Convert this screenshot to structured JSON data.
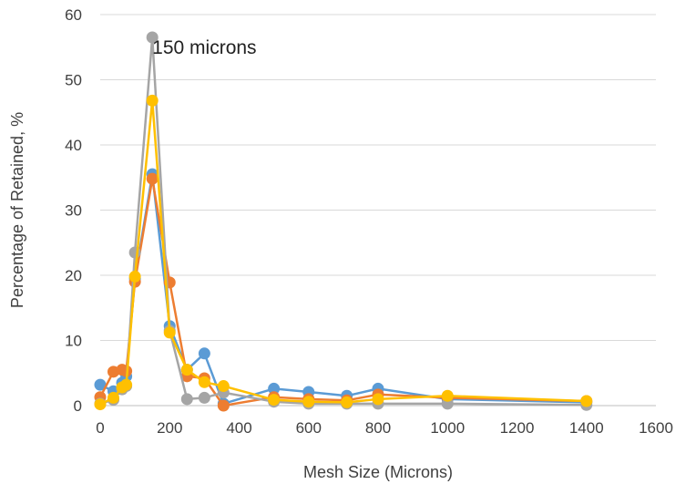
{
  "chart_data": {
    "type": "line",
    "title": "",
    "xlabel": "Mesh Size (Microns)",
    "ylabel": "Percentage of Retained, %",
    "xlim": [
      0,
      1600
    ],
    "ylim": [
      0,
      60
    ],
    "x_ticks": [
      0,
      200,
      400,
      600,
      800,
      1000,
      1200,
      1400,
      1600
    ],
    "y_ticks": [
      0,
      10,
      20,
      30,
      40,
      50,
      60
    ],
    "x_tick_labels": [
      "0",
      "200",
      "400",
      "600",
      "800",
      "1000",
      "1200",
      "1400",
      "1600"
    ],
    "y_tick_labels": [
      "0",
      "10",
      "20",
      "30",
      "40",
      "50",
      "60"
    ],
    "grid": "horizontal",
    "legend": "none",
    "annotations": [
      {
        "text": "150 microns",
        "x": 300,
        "y": 55
      }
    ],
    "series": [
      {
        "color": "#5b9bd5",
        "points": [
          [
            0,
            3.2
          ],
          [
            38,
            2.2
          ],
          [
            63,
            3.5
          ],
          [
            75,
            4.5
          ],
          [
            100,
            19.5
          ],
          [
            150,
            35.5
          ],
          [
            200,
            12.2
          ],
          [
            250,
            5.5
          ],
          [
            300,
            8.0
          ],
          [
            355,
            0.3
          ],
          [
            500,
            2.6
          ],
          [
            600,
            2.1
          ],
          [
            710,
            1.5
          ],
          [
            800,
            2.6
          ],
          [
            1000,
            1.0
          ],
          [
            1400,
            0.5
          ]
        ]
      },
      {
        "color": "#ed7d31",
        "points": [
          [
            0,
            1.3
          ],
          [
            38,
            5.2
          ],
          [
            63,
            5.5
          ],
          [
            75,
            5.3
          ],
          [
            100,
            19.0
          ],
          [
            150,
            34.8
          ],
          [
            200,
            18.9
          ],
          [
            250,
            4.5
          ],
          [
            300,
            4.2
          ],
          [
            355,
            0.0
          ],
          [
            500,
            1.3
          ],
          [
            600,
            1.0
          ],
          [
            710,
            0.8
          ],
          [
            800,
            1.7
          ],
          [
            1000,
            1.2
          ],
          [
            1400,
            0.7
          ]
        ]
      },
      {
        "color": "#a5a5a5",
        "points": [
          [
            0,
            0.3
          ],
          [
            38,
            0.9
          ],
          [
            63,
            2.5
          ],
          [
            75,
            3.0
          ],
          [
            100,
            23.5
          ],
          [
            150,
            56.5
          ],
          [
            200,
            11.5
          ],
          [
            250,
            1.0
          ],
          [
            300,
            1.2
          ],
          [
            355,
            2.0
          ],
          [
            500,
            0.6
          ],
          [
            600,
            0.3
          ],
          [
            710,
            0.3
          ],
          [
            800,
            0.3
          ],
          [
            1000,
            0.3
          ],
          [
            1400,
            0.1
          ]
        ]
      },
      {
        "color": "#ffc000",
        "points": [
          [
            0,
            0.2
          ],
          [
            38,
            1.2
          ],
          [
            63,
            2.8
          ],
          [
            75,
            3.2
          ],
          [
            100,
            19.8
          ],
          [
            150,
            46.8
          ],
          [
            200,
            11.2
          ],
          [
            250,
            5.5
          ],
          [
            300,
            3.6
          ],
          [
            355,
            3.0
          ],
          [
            500,
            0.9
          ],
          [
            600,
            0.6
          ],
          [
            710,
            0.5
          ],
          [
            800,
            1.0
          ],
          [
            1000,
            1.5
          ],
          [
            1400,
            0.7
          ]
        ]
      }
    ]
  }
}
